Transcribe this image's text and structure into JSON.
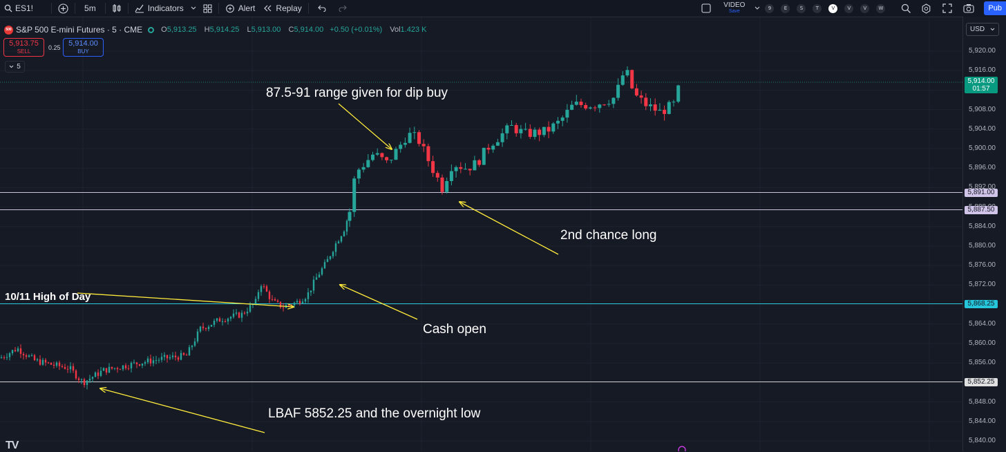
{
  "toolbar": {
    "symbol": "ES1!",
    "timeframe": "5m",
    "indicators_label": "Indicators",
    "alert_label": "Alert",
    "replay_label": "Replay",
    "video_label": "VIDEO",
    "video_sub": "Save",
    "publish_label": "Pub",
    "quick_buttons": [
      {
        "label": "9",
        "active": false
      },
      {
        "label": "E",
        "active": false
      },
      {
        "label": "S",
        "active": false
      },
      {
        "label": "T",
        "active": false
      },
      {
        "label": "V",
        "active": true
      },
      {
        "label": "V",
        "active": false
      },
      {
        "label": "V",
        "active": false
      },
      {
        "label": "W",
        "active": false
      }
    ]
  },
  "legend": {
    "badge": "500",
    "title": "S&P 500 E-mini Futures · 5 · CME",
    "open_key": "O",
    "open": "5,913.25",
    "high_key": "H",
    "high": "5,914.25",
    "low_key": "L",
    "low": "5,913.00",
    "close_key": "C",
    "close": "5,914.00",
    "change": "+0.50 (+0.01%)",
    "vol_key": "Vol",
    "vol": "1.423 K"
  },
  "trade": {
    "sell_price": "5,913.75",
    "sell_label": "SELL",
    "spread": "0.25",
    "buy_price": "5,914.00",
    "buy_label": "BUY",
    "interval_value": "5"
  },
  "axis": {
    "currency": "USD",
    "ticks": [
      "5,920.00",
      "5,916.00",
      "5,912.00",
      "5,908.00",
      "5,904.00",
      "5,900.00",
      "5,896.00",
      "5,892.00",
      "5,888.00",
      "5,884.00",
      "5,880.00",
      "5,876.00",
      "5,872.00",
      "5,868.00",
      "5,864.00",
      "5,860.00",
      "5,856.00",
      "5,852.00",
      "5,848.00",
      "5,844.00",
      "5,840.00"
    ],
    "current_price": "5,914.00",
    "countdown": "01:57"
  },
  "levels": [
    {
      "label": "5,891.00",
      "color": "#d1c4e9",
      "line": "#c9c3de"
    },
    {
      "label": "5,887.50",
      "color": "#d1c4e9",
      "line": "#c9c3de"
    },
    {
      "label": "5,868.25",
      "color": "#26c6da",
      "line": "#26c6da"
    },
    {
      "label": "5,852.25",
      "color": "#e0e0e0",
      "line": "#d0d0d0"
    }
  ],
  "annotations": {
    "dip_buy": "87.5-91 range given for dip buy",
    "second_chance": "2nd chance long",
    "high_of_day": "10/11 High of Day",
    "cash_open": "Cash open",
    "lbaf": "LBAF 5852.25 and the overnight low"
  },
  "colors": {
    "up": "#26a69a",
    "down": "#f23645",
    "arrow": "#ffeb3b",
    "background": "#161a25"
  },
  "logo": "TV"
}
